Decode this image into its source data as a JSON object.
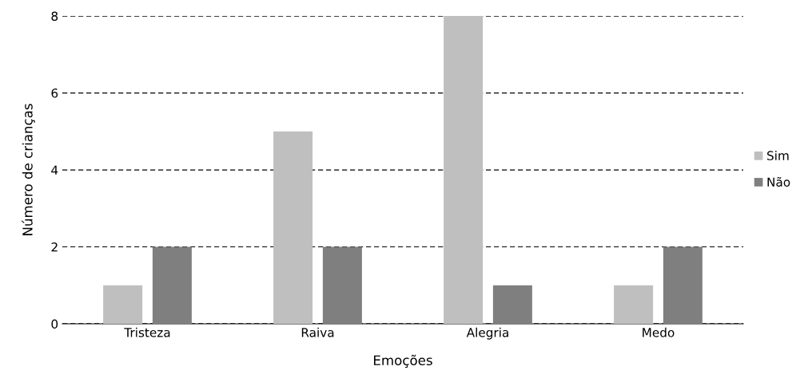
{
  "chart_data": {
    "type": "bar",
    "xlabel": "Emoções",
    "ylabel": "Número de crianças",
    "categories": [
      "Tristeza",
      "Raiva",
      "Alegria",
      "Medo"
    ],
    "series": [
      {
        "name": "Sim",
        "color": "#bfbfbf",
        "values": [
          1,
          5,
          8,
          1
        ]
      },
      {
        "name": "Não",
        "color": "#7f7f7f",
        "values": [
          2,
          2,
          1,
          2
        ]
      }
    ],
    "ylim": [
      0,
      8
    ],
    "yticks": [
      0,
      2,
      4,
      6,
      8
    ],
    "grid": "y",
    "legend": "right"
  }
}
